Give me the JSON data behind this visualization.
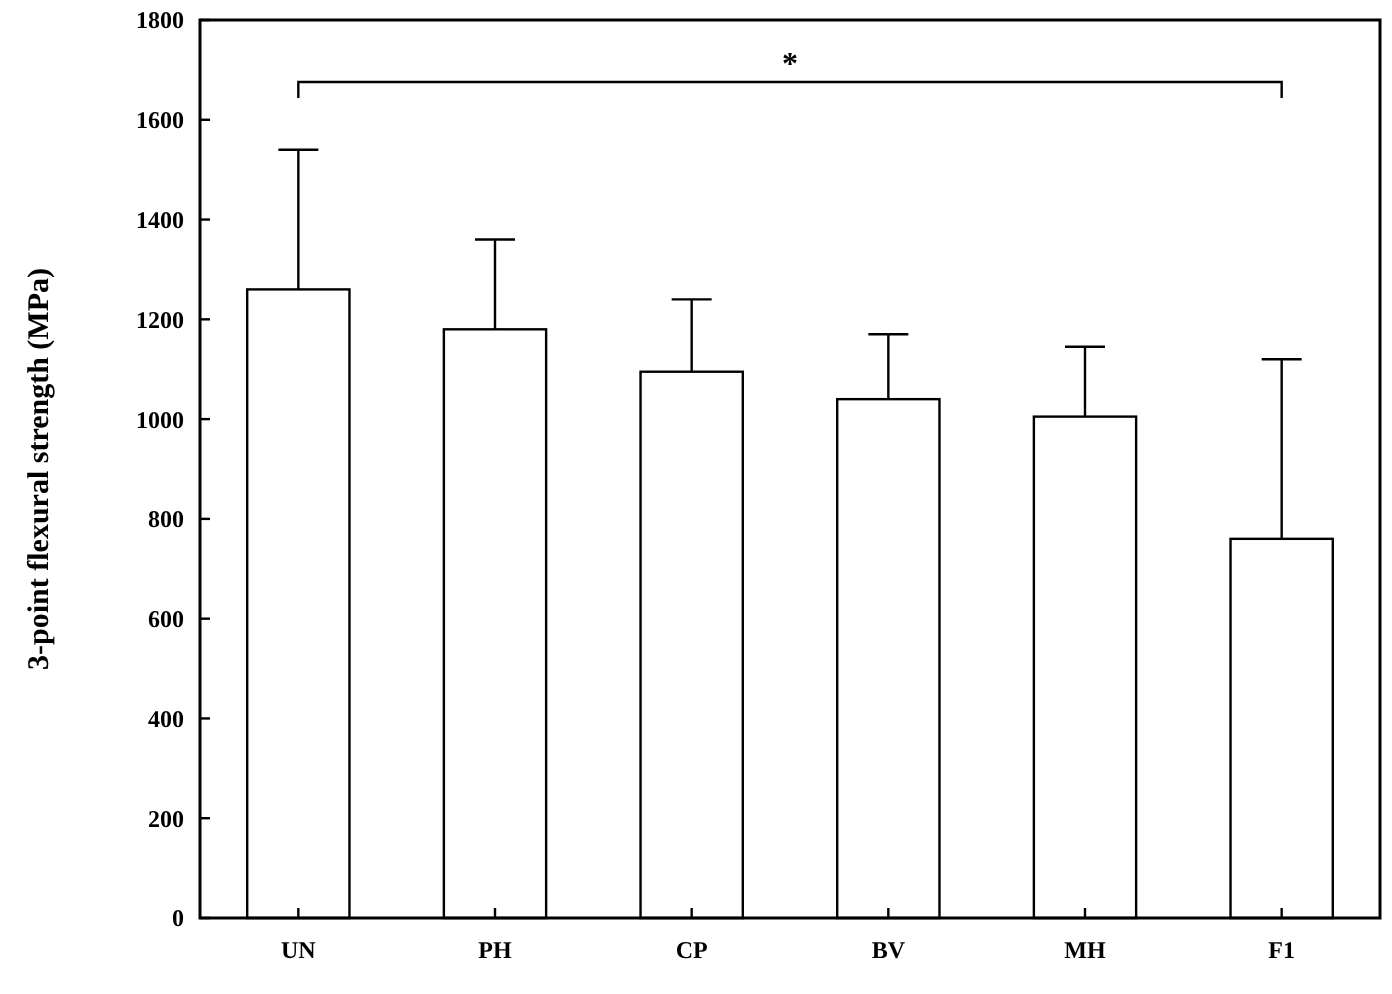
{
  "chart_data": {
    "type": "bar",
    "ylabel": "3-point flexural strength (MPa)",
    "categories": [
      "UN",
      "PH",
      "CP",
      "BV",
      "MH",
      "F1"
    ],
    "values": [
      1260,
      1180,
      1095,
      1040,
      1005,
      760
    ],
    "errors": [
      [
        1260,
        1540
      ],
      [
        1180,
        1360
      ],
      [
        1095,
        1240
      ],
      [
        1040,
        1170
      ],
      [
        1005,
        1145
      ],
      [
        760,
        1120
      ]
    ],
    "color": "#ffffff",
    "ylim": [
      0,
      1800
    ],
    "yticks": [
      0,
      200,
      400,
      600,
      800,
      1000,
      1200,
      1400,
      1600,
      1800
    ],
    "grid": false,
    "annotations": [
      "*"
    ]
  }
}
